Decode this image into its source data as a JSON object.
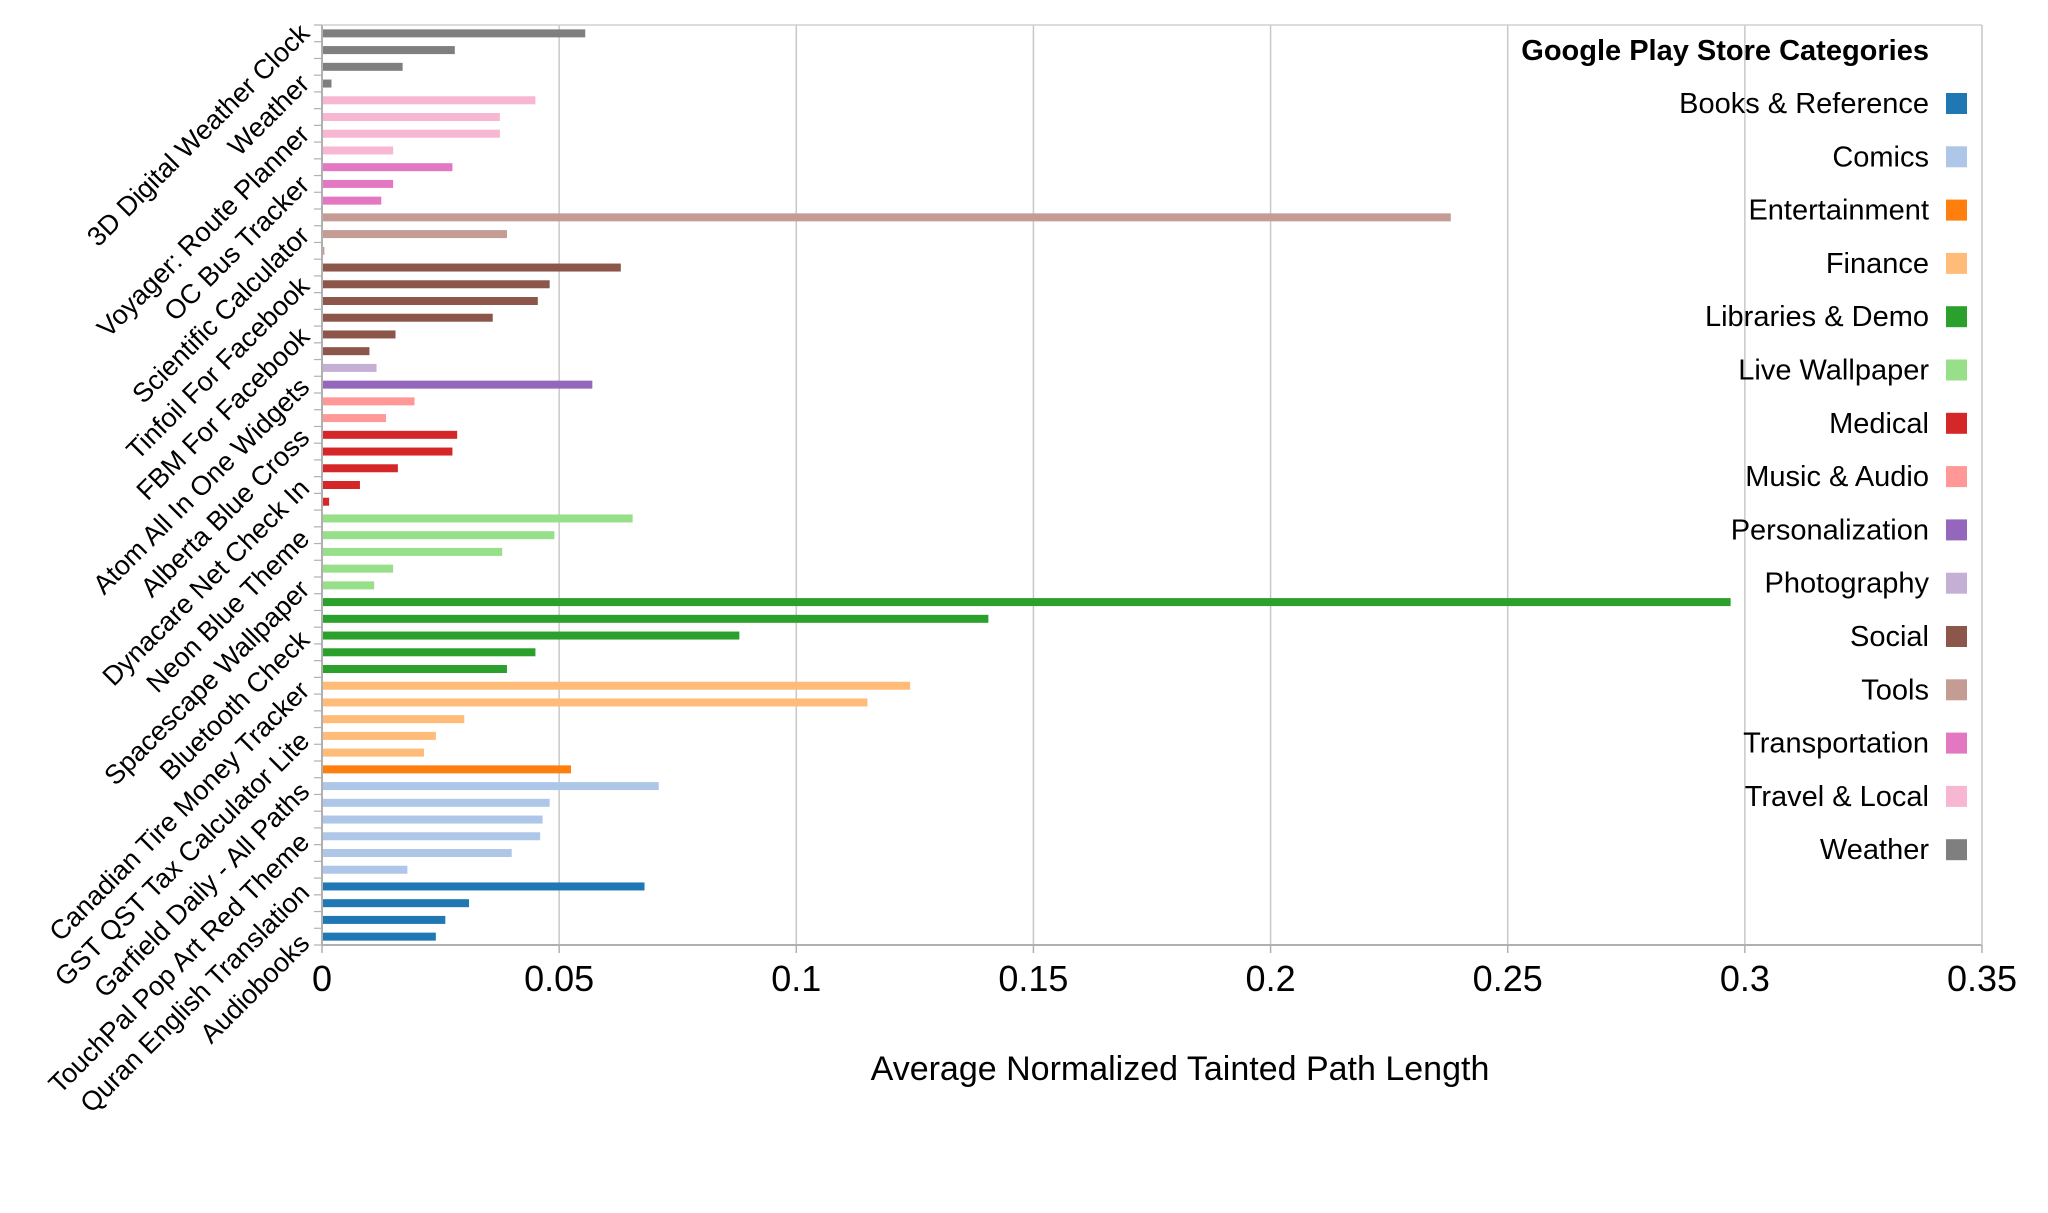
{
  "chart_data": {
    "type": "bar",
    "orientation": "horizontal",
    "xlabel": "Average Normalized Tainted Path Length",
    "ylabel": "",
    "xlim": [
      0,
      0.35
    ],
    "xticks": [
      0,
      0.05,
      0.1,
      0.15,
      0.2,
      0.25,
      0.3,
      0.35
    ],
    "xtick_labels": [
      "0",
      "0.05",
      "0.1",
      "0.15",
      "0.2",
      "0.25",
      "0.3",
      "0.35"
    ],
    "grid": "vertical",
    "legend": {
      "title": "Google Play Store Categories",
      "position": "top-right",
      "entries": [
        {
          "name": "Books & Reference",
          "color": "#1f77b4"
        },
        {
          "name": "Comics",
          "color": "#aec7e8"
        },
        {
          "name": "Entertainment",
          "color": "#ff7f0e"
        },
        {
          "name": "Finance",
          "color": "#ffbb78"
        },
        {
          "name": "Libraries & Demo",
          "color": "#2ca02c"
        },
        {
          "name": "Live Wallpaper",
          "color": "#98df8a"
        },
        {
          "name": "Medical",
          "color": "#d62728"
        },
        {
          "name": "Music & Audio",
          "color": "#ff9896"
        },
        {
          "name": "Personalization",
          "color": "#9467bd"
        },
        {
          "name": "Photography",
          "color": "#c5b0d5"
        },
        {
          "name": "Social",
          "color": "#8c564b"
        },
        {
          "name": "Tools",
          "color": "#c49c94"
        },
        {
          "name": "Transportation",
          "color": "#e377c2"
        },
        {
          "name": "Travel & Local",
          "color": "#f7b6d2"
        },
        {
          "name": "Weather",
          "color": "#7f7f7f"
        }
      ]
    },
    "category_tick_labels": [
      "Audiobooks",
      "Quran English Translation",
      "TouchPal Pop Art Red Theme",
      "Garfield Daily - All Paths",
      "GST QST Tax Calculator Lite",
      "Canadian Tire Money Tracker",
      "Bluetooth Check",
      "Spacescape Wallpaper",
      "Neon Blue Theme",
      "Dynacare Net Check In",
      "Alberta Blue Cross",
      "Atom All In One Widgets",
      "FBM For Facebook",
      "Tinfoil For Facebook",
      "Scientific Calculator",
      "OC Bus Tracker",
      "Voyager: Route Planner",
      "Weather",
      "3D Digital Weather Clock"
    ],
    "bars": [
      {
        "category": "Books & Reference",
        "value": 0.024
      },
      {
        "category": "Books & Reference",
        "value": 0.026
      },
      {
        "category": "Books & Reference",
        "value": 0.031
      },
      {
        "category": "Books & Reference",
        "value": 0.068
      },
      {
        "category": "Comics",
        "value": 0.018
      },
      {
        "category": "Comics",
        "value": 0.04
      },
      {
        "category": "Comics",
        "value": 0.046
      },
      {
        "category": "Comics",
        "value": 0.0465
      },
      {
        "category": "Comics",
        "value": 0.048
      },
      {
        "category": "Comics",
        "value": 0.071
      },
      {
        "category": "Entertainment",
        "value": 0.0525
      },
      {
        "category": "Finance",
        "value": 0.0215
      },
      {
        "category": "Finance",
        "value": 0.024
      },
      {
        "category": "Finance",
        "value": 0.03
      },
      {
        "category": "Finance",
        "value": 0.115
      },
      {
        "category": "Finance",
        "value": 0.124
      },
      {
        "category": "Libraries & Demo",
        "value": 0.039
      },
      {
        "category": "Libraries & Demo",
        "value": 0.045
      },
      {
        "category": "Libraries & Demo",
        "value": 0.088
      },
      {
        "category": "Libraries & Demo",
        "value": 0.1405
      },
      {
        "category": "Libraries & Demo",
        "value": 0.297
      },
      {
        "category": "Live Wallpaper",
        "value": 0.011
      },
      {
        "category": "Live Wallpaper",
        "value": 0.015
      },
      {
        "category": "Live Wallpaper",
        "value": 0.038
      },
      {
        "category": "Live Wallpaper",
        "value": 0.049
      },
      {
        "category": "Live Wallpaper",
        "value": 0.0655
      },
      {
        "category": "Medical",
        "value": 0.0015
      },
      {
        "category": "Medical",
        "value": 0.008
      },
      {
        "category": "Medical",
        "value": 0.016
      },
      {
        "category": "Medical",
        "value": 0.0275
      },
      {
        "category": "Medical",
        "value": 0.0285
      },
      {
        "category": "Music & Audio",
        "value": 0.0135
      },
      {
        "category": "Music & Audio",
        "value": 0.0195
      },
      {
        "category": "Personalization",
        "value": 0.057
      },
      {
        "category": "Photography",
        "value": 0.0115
      },
      {
        "category": "Social",
        "value": 0.01
      },
      {
        "category": "Social",
        "value": 0.0155
      },
      {
        "category": "Social",
        "value": 0.036
      },
      {
        "category": "Social",
        "value": 0.0455
      },
      {
        "category": "Social",
        "value": 0.048
      },
      {
        "category": "Social",
        "value": 0.063
      },
      {
        "category": "Tools",
        "value": 0.0005
      },
      {
        "category": "Tools",
        "value": 0.039
      },
      {
        "category": "Tools",
        "value": 0.238
      },
      {
        "category": "Transportation",
        "value": 0.0125
      },
      {
        "category": "Transportation",
        "value": 0.015
      },
      {
        "category": "Transportation",
        "value": 0.0275
      },
      {
        "category": "Travel & Local",
        "value": 0.015
      },
      {
        "category": "Travel & Local",
        "value": 0.0375
      },
      {
        "category": "Travel & Local",
        "value": 0.0375
      },
      {
        "category": "Travel & Local",
        "value": 0.045
      },
      {
        "category": "Weather",
        "value": 0.002
      },
      {
        "category": "Weather",
        "value": 0.017
      },
      {
        "category": "Weather",
        "value": 0.028
      },
      {
        "category": "Weather",
        "value": 0.0555
      }
    ]
  }
}
